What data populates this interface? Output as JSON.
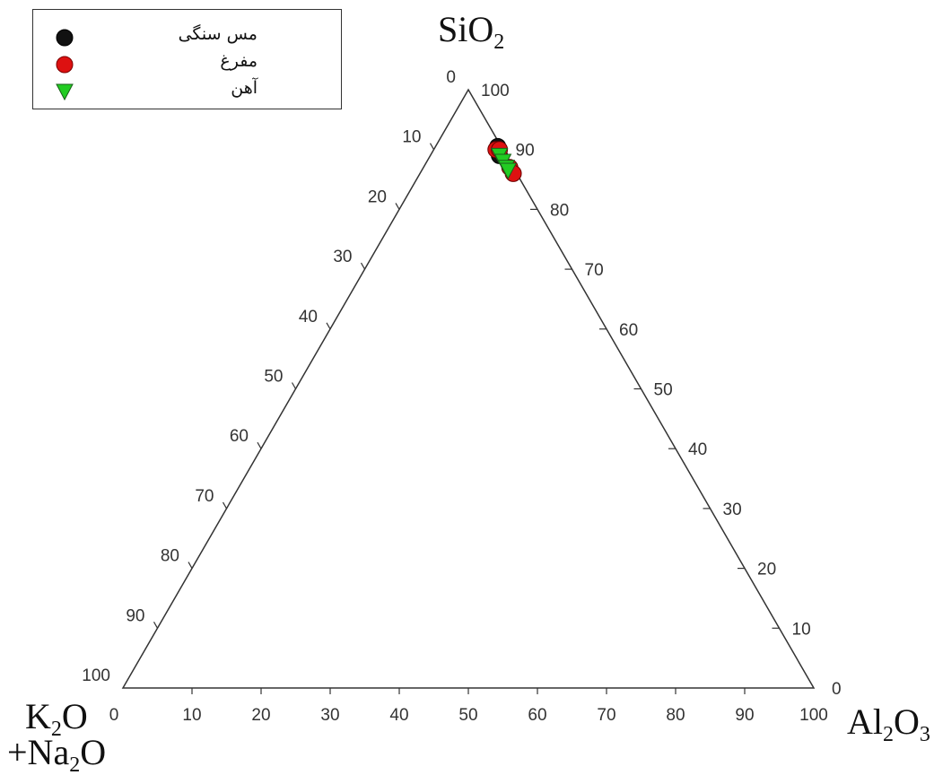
{
  "chart_data": {
    "type": "scatter",
    "subtype": "ternary",
    "axes": {
      "top": {
        "label": "SiO",
        "sub": "2"
      },
      "right": {
        "label_parts": [
          {
            "t": "Al"
          },
          {
            "t": "2",
            "sub": true
          },
          {
            "t": "O"
          },
          {
            "t": "3",
            "sub": true
          }
        ]
      },
      "left": {
        "line1_parts": [
          {
            "t": "K"
          },
          {
            "t": "2",
            "sub": true
          },
          {
            "t": "O"
          }
        ],
        "line2_parts": [
          {
            "t": "+Na"
          },
          {
            "t": "2",
            "sub": true
          },
          {
            "t": "O"
          }
        ]
      }
    },
    "ticks": [
      "0",
      "10",
      "20",
      "30",
      "40",
      "50",
      "60",
      "70",
      "80",
      "90",
      "100"
    ],
    "grid": false,
    "legend_position": "top-left",
    "series": [
      {
        "name": "مس سنگی",
        "color": "#111111",
        "marker": "circle",
        "points": [
          {
            "sio2": 90.5,
            "al2o3": 9.0,
            "alk": 0.5
          },
          {
            "sio2": 89.0,
            "al2o3": 10.0,
            "alk": 1.0
          }
        ]
      },
      {
        "name": "مفرغ",
        "color": "#dd1111",
        "marker": "circle",
        "points": [
          {
            "sio2": 90.0,
            "al2o3": 9.0,
            "alk": 1.0
          },
          {
            "sio2": 90.0,
            "al2o3": 9.5,
            "alk": 0.5
          },
          {
            "sio2": 87.0,
            "al2o3": 12.5,
            "alk": 0.5
          },
          {
            "sio2": 86.0,
            "al2o3": 13.5,
            "alk": 0.5
          }
        ]
      },
      {
        "name": "آهن",
        "color": "#22cc22",
        "marker": "triangle-down",
        "points": [
          {
            "sio2": 89.0,
            "al2o3": 10.0,
            "alk": 1.0
          },
          {
            "sio2": 88.0,
            "al2o3": 11.0,
            "alk": 1.0
          },
          {
            "sio2": 87.0,
            "al2o3": 12.0,
            "alk": 1.0
          },
          {
            "sio2": 86.5,
            "al2o3": 12.5,
            "alk": 1.0
          }
        ]
      }
    ]
  }
}
